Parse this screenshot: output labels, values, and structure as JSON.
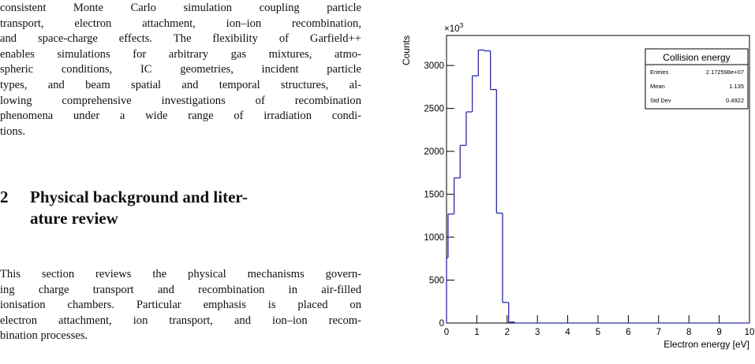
{
  "paragraph_1": {
    "lines": [
      "consistent Monte Carlo simulation coupling particle",
      "transport, electron attachment, ion–ion recombination,",
      "and space-charge effects. The flexibility of Garfield++",
      "enables simulations for arbitrary gas mixtures, atmo-",
      "spheric conditions, IC geometries, incident particle",
      "types, and beam spatial and temporal structures, al-",
      "lowing comprehensive investigations of recombination",
      "phenomena under a wide range of irradiation condi-",
      "tions."
    ]
  },
  "section": {
    "number": "2",
    "title_lines": [
      "Physical background and liter-",
      "ature review"
    ]
  },
  "paragraph_2": {
    "lines": [
      "This section reviews the physical mechanisms govern-",
      "ing charge transport and recombination in air-filled",
      "ionisation chambers. Particular emphasis is placed on",
      "electron attachment, ion transport, and ion–ion recom-",
      "bination processes."
    ]
  },
  "chart_data": {
    "type": "histogram",
    "bins": [
      0,
      0.05,
      0.25,
      0.45,
      0.65,
      0.85,
      1.05,
      1.25,
      1.45,
      1.65,
      1.85,
      2.05,
      2.25,
      10
    ],
    "values": [
      760,
      1270,
      1690,
      2070,
      2460,
      2880,
      3180,
      3170,
      2720,
      1280,
      240,
      10,
      0
    ],
    "color": "#2b2ba8",
    "xlim": [
      0,
      10
    ],
    "xticks": [
      0,
      1,
      2,
      3,
      4,
      5,
      6,
      7,
      8,
      9,
      10
    ],
    "ylim": [
      0,
      3350
    ],
    "yticks": [
      0,
      500,
      1000,
      1500,
      2000,
      2500,
      3000
    ],
    "x_label": "Electron energy [eV]",
    "y_label": "Counts",
    "y_multiplier": "×10",
    "y_multiplier_exponent": "3",
    "stats_box": {
      "title": "Collision energy",
      "rows": [
        {
          "label": "Entries",
          "value": "2.172598e+07"
        },
        {
          "label": "Mean",
          "value": "1.135"
        },
        {
          "label": "Std Dev",
          "value": "0.4922"
        }
      ]
    }
  }
}
